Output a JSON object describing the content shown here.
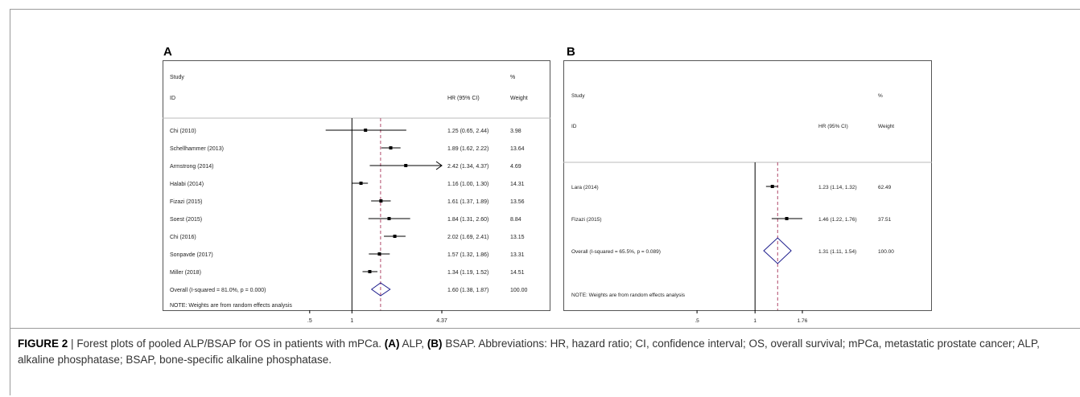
{
  "figure_label": "FIGURE 2",
  "caption": {
    "separator": "|",
    "segments": [
      {
        "text": "Forest plots of pooled ALP/BSAP for OS in patients with mPCa. ",
        "bold": false
      },
      {
        "text": "(A)",
        "bold": true
      },
      {
        "text": " ALP, ",
        "bold": false
      },
      {
        "text": "(B)",
        "bold": true
      },
      {
        "text": " BSAP. Abbreviations: HR, hazard ratio; CI, confidence interval; OS, overall survival; mPCa, metastatic prostate cancer; ALP, alkaline phosphatase; BSAP, bone-specific alkaline phosphatase.",
        "bold": false
      }
    ]
  },
  "chart_data": [
    {
      "type": "forest",
      "panel": "A",
      "scale": "log",
      "header": {
        "study": "Study",
        "id": "ID",
        "effect": "HR (95% CI)",
        "pct": "%",
        "weight": "Weight"
      },
      "studies": [
        {
          "id": "Chi (2010)",
          "hr": 1.25,
          "lo": 0.65,
          "hi": 2.44,
          "label": "1.25 (0.65, 2.44)",
          "weight": "3.98"
        },
        {
          "id": "Schellhammer (2013)",
          "hr": 1.89,
          "lo": 1.62,
          "hi": 2.22,
          "label": "1.89 (1.62, 2.22)",
          "weight": "13.64"
        },
        {
          "id": "Armstrong (2014)",
          "hr": 2.42,
          "lo": 1.34,
          "hi": 4.37,
          "label": "2.42 (1.34, 4.37)",
          "weight": "4.69",
          "arrow": true
        },
        {
          "id": "Halabi (2014)",
          "hr": 1.16,
          "lo": 1.0,
          "hi": 1.3,
          "label": "1.16 (1.00, 1.30)",
          "weight": "14.31"
        },
        {
          "id": "Fizazi (2015)",
          "hr": 1.61,
          "lo": 1.37,
          "hi": 1.89,
          "label": "1.61 (1.37, 1.89)",
          "weight": "13.56"
        },
        {
          "id": "Soest (2015)",
          "hr": 1.84,
          "lo": 1.31,
          "hi": 2.6,
          "label": "1.84 (1.31, 2.60)",
          "weight": "8.84"
        },
        {
          "id": "Chi (2016)",
          "hr": 2.02,
          "lo": 1.69,
          "hi": 2.41,
          "label": "2.02 (1.69, 2.41)",
          "weight": "13.15"
        },
        {
          "id": "Sonpavde (2017)",
          "hr": 1.57,
          "lo": 1.32,
          "hi": 1.86,
          "label": "1.57 (1.32, 1.86)",
          "weight": "13.31"
        },
        {
          "id": "Miller (2018)",
          "hr": 1.34,
          "lo": 1.19,
          "hi": 1.52,
          "label": "1.34 (1.19, 1.52)",
          "weight": "14.51"
        }
      ],
      "overall": {
        "id": "Overall  (I-squared = 81.0%, p = 0.000)",
        "hr": 1.6,
        "lo": 1.38,
        "hi": 1.87,
        "label": "1.60 (1.38, 1.87)",
        "weight": "100.00"
      },
      "note": "NOTE: Weights are from random effects analysis",
      "x_ticks": [
        0.5,
        1,
        4.37
      ],
      "x_tick_labels": [
        ".5",
        "1",
        "4.37"
      ],
      "xlim": [
        0.23,
        4.37
      ]
    },
    {
      "type": "forest",
      "panel": "B",
      "scale": "log",
      "header": {
        "study": "Study",
        "id": "ID",
        "effect": "HR (95% CI)",
        "pct": "%",
        "weight": "Weight"
      },
      "studies": [
        {
          "id": "Lara (2014)",
          "hr": 1.23,
          "lo": 1.14,
          "hi": 1.32,
          "label": "1.23 (1.14, 1.32)",
          "weight": "62.49"
        },
        {
          "id": "Fizazi (2015)",
          "hr": 1.46,
          "lo": 1.22,
          "hi": 1.76,
          "label": "1.46 (1.22, 1.76)",
          "weight": "37.51"
        }
      ],
      "overall": {
        "id": "Overall  (I-squared = 65.5%, p = 0.089)",
        "hr": 1.31,
        "lo": 1.11,
        "hi": 1.54,
        "label": "1.31 (1.11, 1.54)",
        "weight": "100.00"
      },
      "note": "NOTE: Weights are from random effects analysis",
      "x_ticks": [
        0.5,
        1,
        1.76
      ],
      "x_tick_labels": [
        ".5",
        "1",
        "1.76"
      ],
      "xlim": [
        0.25,
        1.76
      ]
    }
  ]
}
